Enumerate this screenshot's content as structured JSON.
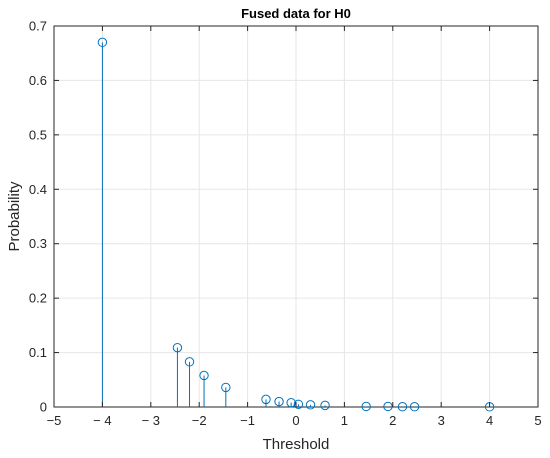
{
  "chart_data": {
    "type": "stem",
    "title": "Fused data for H0",
    "xlabel": "Threshold",
    "ylabel": "Probability",
    "xlim": [
      -5,
      5
    ],
    "ylim": [
      0,
      0.7
    ],
    "grid": true,
    "x_ticks": [
      -5,
      -4,
      -3,
      -2,
      -1,
      0,
      1,
      2,
      3,
      4,
      5
    ],
    "x_tick_labels": [
      "−5",
      "− 4",
      "− 3",
      "−2",
      "−1",
      "0",
      "1",
      "2",
      "3",
      "4",
      "5"
    ],
    "y_ticks": [
      0,
      0.1,
      0.2,
      0.3,
      0.4,
      0.5,
      0.6,
      0.7
    ],
    "y_tick_labels": [
      "0",
      "0.1",
      "0.2",
      "0.3",
      "0.4",
      "0.5",
      "0.6",
      "0.7"
    ],
    "series": [
      {
        "color": "#0072bd",
        "marker": "circle",
        "x": [
          -4.0,
          -2.45,
          -2.2,
          -1.9,
          -1.45,
          -0.62,
          -0.35,
          -0.1,
          0.05,
          0.3,
          0.6,
          1.45,
          1.9,
          2.2,
          2.45,
          4.0
        ],
        "y": [
          0.67,
          0.109,
          0.083,
          0.058,
          0.036,
          0.014,
          0.01,
          0.008,
          0.005,
          0.004,
          0.003,
          0.001,
          0.001,
          0.0005,
          0.0005,
          0.0003
        ]
      }
    ]
  }
}
